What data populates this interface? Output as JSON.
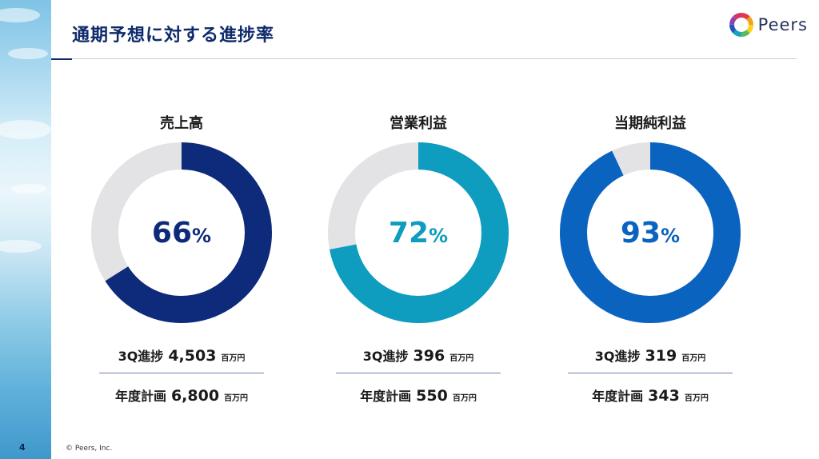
{
  "page": {
    "title": "通期予想に対する進捗率",
    "page_number": "4",
    "copyright": "© Peers, Inc."
  },
  "logo": {
    "text": "Peers"
  },
  "colors": {
    "title": "#0e2a6b",
    "track": "#e3e3e6",
    "sales": "#0e2a7a",
    "operating": "#0e9cbf",
    "net": "#0b63c0"
  },
  "panels": [
    {
      "name": "売上高",
      "percent": 66,
      "percent_num": "66",
      "percent_unit": "%",
      "color": "#0e2a7a",
      "progress_label": "3Q進捗",
      "progress_value": "4,503",
      "plan_label": "年度計画",
      "plan_value": "6,800",
      "unit": "百万円"
    },
    {
      "name": "営業利益",
      "percent": 72,
      "percent_num": "72",
      "percent_unit": "%",
      "color": "#0e9cbf",
      "progress_label": "3Q進捗",
      "progress_value": "396",
      "plan_label": "年度計画",
      "plan_value": "550",
      "unit": "百万円"
    },
    {
      "name": "当期純利益",
      "percent": 93,
      "percent_num": "93",
      "percent_unit": "%",
      "color": "#0b63c0",
      "progress_label": "3Q進捗",
      "progress_value": "319",
      "plan_label": "年度計画",
      "plan_value": "343",
      "unit": "百万円"
    }
  ],
  "chart_data": [
    {
      "type": "pie",
      "title": "売上高",
      "values": [
        66,
        34
      ],
      "labels": [
        "3Q進捗",
        ""
      ]
    },
    {
      "type": "pie",
      "title": "営業利益",
      "values": [
        72,
        28
      ],
      "labels": [
        "3Q進捗",
        ""
      ]
    },
    {
      "type": "pie",
      "title": "当期純利益",
      "values": [
        93,
        7
      ],
      "labels": [
        "3Q進捗",
        ""
      ]
    }
  ]
}
